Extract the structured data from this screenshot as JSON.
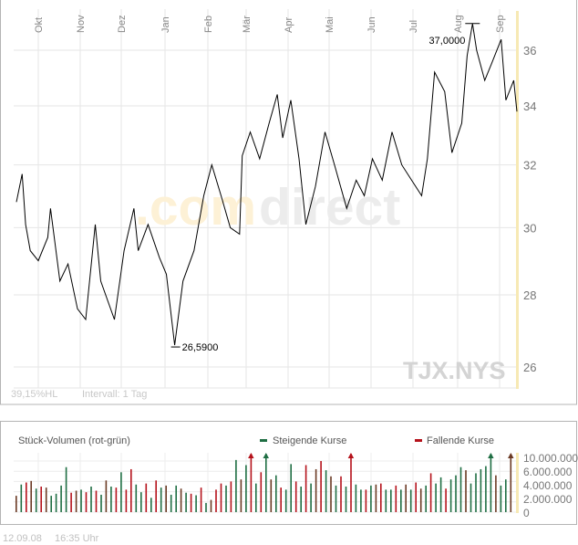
{
  "chart_data": [
    {
      "type": "line",
      "symbol": "TJX.NYS",
      "watermark": {
        "part1": ".com",
        "part2": "direct"
      },
      "y_scale": "log",
      "ylim": [
        25.5,
        37.5
      ],
      "y_ticks": [
        {
          "v": 26,
          "label": "26"
        },
        {
          "v": 28,
          "label": "28"
        },
        {
          "v": 30,
          "label": "30"
        },
        {
          "v": 32,
          "label": "32"
        },
        {
          "v": 34,
          "label": "34"
        },
        {
          "v": 36,
          "label": "36"
        }
      ],
      "x_ticks": [
        "Okt",
        "Nov",
        "Dez",
        "Jan",
        "Feb",
        "Mär",
        "Apr",
        "Mai",
        "Jun",
        "Jul",
        "Aug",
        "Sep"
      ],
      "grid": true,
      "annotations": {
        "high": {
          "date": "2008-08-12",
          "label": "37,0000",
          "value": 37.0
        },
        "low": {
          "date": "2008-01-08",
          "label": "26,5900",
          "value": 26.59
        }
      },
      "footer_left": "39,15%HL",
      "interval": "Intervall: 1 Tag",
      "series": [
        {
          "color": "#000000",
          "points": [
            [
              "2007-09-12",
              30.8
            ],
            [
              "2007-09-17",
              31.7
            ],
            [
              "2007-09-20",
              30.1
            ],
            [
              "2007-09-24",
              29.3
            ],
            [
              "2007-10-01",
              29.0
            ],
            [
              "2007-10-08",
              29.7
            ],
            [
              "2007-10-10",
              30.6
            ],
            [
              "2007-10-17",
              28.4
            ],
            [
              "2007-10-23",
              28.9
            ],
            [
              "2007-10-30",
              27.6
            ],
            [
              "2007-11-05",
              27.3
            ],
            [
              "2007-11-12",
              30.1
            ],
            [
              "2007-11-16",
              28.4
            ],
            [
              "2007-11-26",
              27.3
            ],
            [
              "2007-12-03",
              29.3
            ],
            [
              "2007-12-10",
              30.6
            ],
            [
              "2007-12-13",
              29.3
            ],
            [
              "2007-12-20",
              30.1
            ],
            [
              "2007-12-28",
              29.1
            ],
            [
              "2008-01-02",
              28.6
            ],
            [
              "2008-01-08",
              26.59
            ],
            [
              "2008-01-14",
              28.4
            ],
            [
              "2008-01-22",
              29.3
            ],
            [
              "2008-01-29",
              31.0
            ],
            [
              "2008-02-04",
              32.0
            ],
            [
              "2008-02-11",
              31.0
            ],
            [
              "2008-02-18",
              30.0
            ],
            [
              "2008-02-25",
              29.8
            ],
            [
              "2008-02-27",
              32.3
            ],
            [
              "2008-03-04",
              33.1
            ],
            [
              "2008-03-11",
              32.2
            ],
            [
              "2008-03-18",
              33.4
            ],
            [
              "2008-03-24",
              34.4
            ],
            [
              "2008-03-28",
              32.9
            ],
            [
              "2008-04-03",
              34.2
            ],
            [
              "2008-04-09",
              32.2
            ],
            [
              "2008-04-14",
              30.1
            ],
            [
              "2008-04-21",
              31.3
            ],
            [
              "2008-04-28",
              33.1
            ],
            [
              "2008-05-05",
              32.0
            ],
            [
              "2008-05-14",
              30.6
            ],
            [
              "2008-05-21",
              31.5
            ],
            [
              "2008-05-27",
              31.0
            ],
            [
              "2008-06-02",
              32.2
            ],
            [
              "2008-06-09",
              31.5
            ],
            [
              "2008-06-16",
              33.1
            ],
            [
              "2008-06-23",
              32.0
            ],
            [
              "2008-06-30",
              31.5
            ],
            [
              "2008-07-07",
              31.0
            ],
            [
              "2008-07-11",
              32.2
            ],
            [
              "2008-07-16",
              35.2
            ],
            [
              "2008-07-23",
              34.5
            ],
            [
              "2008-07-28",
              32.4
            ],
            [
              "2008-08-04",
              33.4
            ],
            [
              "2008-08-08",
              35.8
            ],
            [
              "2008-08-12",
              37.0
            ],
            [
              "2008-08-15",
              36.0
            ],
            [
              "2008-08-21",
              34.9
            ],
            [
              "2008-08-26",
              35.5
            ],
            [
              "2008-09-02",
              36.4
            ],
            [
              "2008-09-05",
              34.2
            ],
            [
              "2008-09-10",
              34.9
            ],
            [
              "2008-09-12",
              33.8
            ]
          ]
        }
      ]
    },
    {
      "type": "bar",
      "title": "Stück-Volumen (rot-grün)",
      "legend": [
        {
          "name": "Steigende Kurse",
          "color": "#1f6e43"
        },
        {
          "name": "Fallende Kurse",
          "color": "#b5121b"
        }
      ],
      "legend_placement": "top",
      "ylim": [
        0,
        11000000
      ],
      "y_ticks": [
        {
          "v": 0,
          "label": "0"
        },
        {
          "v": 2000000,
          "label": "2.000.000"
        },
        {
          "v": 4000000,
          "label": "4.000.000"
        },
        {
          "v": 6000000,
          "label": "6.000.000"
        },
        {
          "v": 10000000,
          "label": "10.000.000"
        }
      ],
      "colors": {
        "up": "#1f6e43",
        "down": "#b5121b",
        "neutral": "#6b3a24"
      },
      "values_millions": [
        3.2,
        5.4,
        5.8,
        6.1,
        4.6,
        5.0,
        4.8,
        3.2,
        3.6,
        5.2,
        8.8,
        3.8,
        4.2,
        4.4,
        3.9,
        5.0,
        4.2,
        3.4,
        6.2,
        5.0,
        4.8,
        7.8,
        4.4,
        8.4,
        5.4,
        3.9,
        5.6,
        2.8,
        6.2,
        4.8,
        5.2,
        3.4,
        5.2,
        4.6,
        3.8,
        3.6,
        3.3,
        4.8,
        1.8,
        2.4,
        4.4,
        5.6,
        5.2,
        6.0,
        10.2,
        6.4,
        9.2,
        11.2,
        5.6,
        7.8,
        11.2,
        6.4,
        7.2,
        4.8,
        4.4,
        9.4,
        6.0,
        5.0,
        9.2,
        5.6,
        8.4,
        10.0,
        8.2,
        7.0,
        5.2,
        7.0,
        5.0,
        11.2,
        5.4,
        4.4,
        4.4,
        5.2,
        5.4,
        5.6,
        4.4,
        4.4,
        5.2,
        4.4,
        5.4,
        4.4,
        5.8,
        4.6,
        5.2,
        7.6,
        5.6,
        6.8,
        4.6,
        6.4,
        7.2,
        8.8,
        8.2,
        5.6,
        7.6,
        8.4,
        9.0,
        11.2,
        7.2,
        5.2,
        6.4,
        11.2
      ],
      "directions": [
        "down",
        "up",
        "down",
        "down",
        "up",
        "down",
        "down",
        "up",
        "up",
        "up",
        "up",
        "down",
        "down",
        "up",
        "down",
        "up",
        "down",
        "up",
        "down",
        "up",
        "down",
        "up",
        "down",
        "down",
        "up",
        "up",
        "down",
        "up",
        "down",
        "up",
        "down",
        "up",
        "up",
        "down",
        "up",
        "down",
        "up",
        "down",
        "up",
        "down",
        "down",
        "down",
        "up",
        "down",
        "up",
        "down",
        "up",
        "down",
        "up",
        "down",
        "up",
        "down",
        "up",
        "down",
        "up",
        "up",
        "down",
        "up",
        "down",
        "up",
        "down",
        "down",
        "up",
        "down",
        "up",
        "down",
        "up",
        "down",
        "up",
        "up",
        "down",
        "up",
        "down",
        "down",
        "up",
        "up",
        "down",
        "up",
        "down",
        "up",
        "down",
        "down",
        "up",
        "down",
        "up",
        "up",
        "down",
        "up",
        "up",
        "up",
        "down",
        "up",
        "up",
        "up",
        "up",
        "up",
        "down",
        "up",
        "up",
        "down"
      ]
    }
  ],
  "footer": {
    "date": "12.09.08",
    "time": "16:35 Uhr"
  }
}
